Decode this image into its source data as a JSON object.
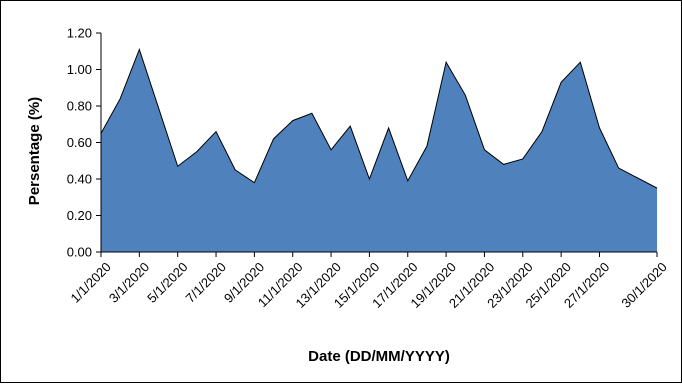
{
  "chart_data": {
    "type": "area",
    "xlabel": "Date (DD/MM/YYYY)",
    "ylabel": "Persentage (%)",
    "ylim": [
      0,
      1.2
    ],
    "yticks": [
      "0.00",
      "0.20",
      "0.40",
      "0.60",
      "0.80",
      "1.00",
      "1.20"
    ],
    "x_tick_labels": [
      "1/1/2020",
      "3/1/2020",
      "5/1/2020",
      "7/1/2020",
      "9/1/2020",
      "11/1/2020",
      "13/1/2020",
      "15/1/2020",
      "17/1/2020",
      "19/1/2020",
      "21/1/2020",
      "23/1/2020",
      "25/1/2020",
      "27/1/2020",
      "30/1/2020"
    ],
    "x": [
      "1/1/2020",
      "2/1/2020",
      "3/1/2020",
      "4/1/2020",
      "5/1/2020",
      "6/1/2020",
      "7/1/2020",
      "8/1/2020",
      "9/1/2020",
      "10/1/2020",
      "11/1/2020",
      "12/1/2020",
      "13/1/2020",
      "14/1/2020",
      "15/1/2020",
      "16/1/2020",
      "17/1/2020",
      "18/1/2020",
      "19/1/2020",
      "20/1/2020",
      "21/1/2020",
      "22/1/2020",
      "23/1/2020",
      "24/1/2020",
      "25/1/2020",
      "26/1/2020",
      "27/1/2020",
      "28/1/2020",
      "30/1/2020"
    ],
    "series": [
      {
        "values": [
          0.65,
          0.84,
          1.11,
          0.79,
          0.47,
          0.55,
          0.66,
          0.45,
          0.38,
          0.62,
          0.72,
          0.76,
          0.56,
          0.69,
          0.4,
          0.68,
          0.39,
          0.58,
          1.04,
          0.86,
          0.56,
          0.48,
          0.51,
          0.66,
          0.93,
          1.04,
          0.68,
          0.46,
          0.35
        ]
      }
    ],
    "fill_color": "#4f81bd",
    "line_color": "#000000",
    "grid": false
  }
}
